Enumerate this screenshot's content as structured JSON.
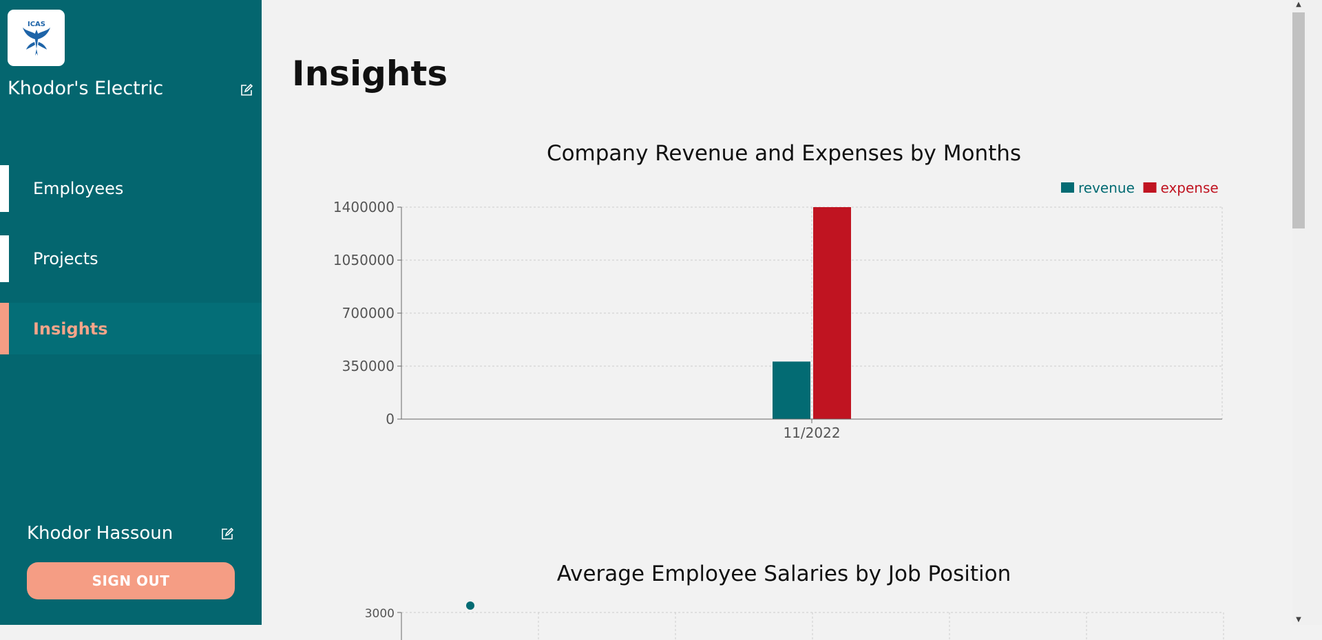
{
  "sidebar": {
    "logo_text": "ICAS",
    "company_name": "Khodor's Electric",
    "nav": [
      {
        "label": "Employees",
        "active": false
      },
      {
        "label": "Projects",
        "active": false
      },
      {
        "label": "Insights",
        "active": true
      }
    ],
    "user_name": "Khodor Hassoun",
    "signout_label": "SIGN OUT"
  },
  "main": {
    "page_title": "Insights",
    "chart1_title": "Company Revenue and Expenses by Months",
    "chart2_title": "Average Employee Salaries by Job Position"
  },
  "colors": {
    "sidebar": "#04666f",
    "accent": "#f59d84",
    "revenue": "#036b73",
    "expense": "#c01421"
  },
  "chart_data": [
    {
      "type": "bar",
      "title": "Company Revenue and Expenses by Months",
      "categories": [
        "11/2022"
      ],
      "series": [
        {
          "name": "revenue",
          "values": [
            380000
          ]
        },
        {
          "name": "expense",
          "values": [
            1400000
          ]
        }
      ],
      "yticks": [
        "0",
        "350000",
        "700000",
        "1050000",
        "1400000"
      ],
      "ylim": [
        0,
        1400000
      ],
      "grid": true,
      "legend": "top-right"
    },
    {
      "type": "scatter",
      "title": "Average Employee Salaries by Job Position",
      "yticks": [
        "3000"
      ],
      "points": [
        {
          "y": 3000
        }
      ]
    }
  ]
}
